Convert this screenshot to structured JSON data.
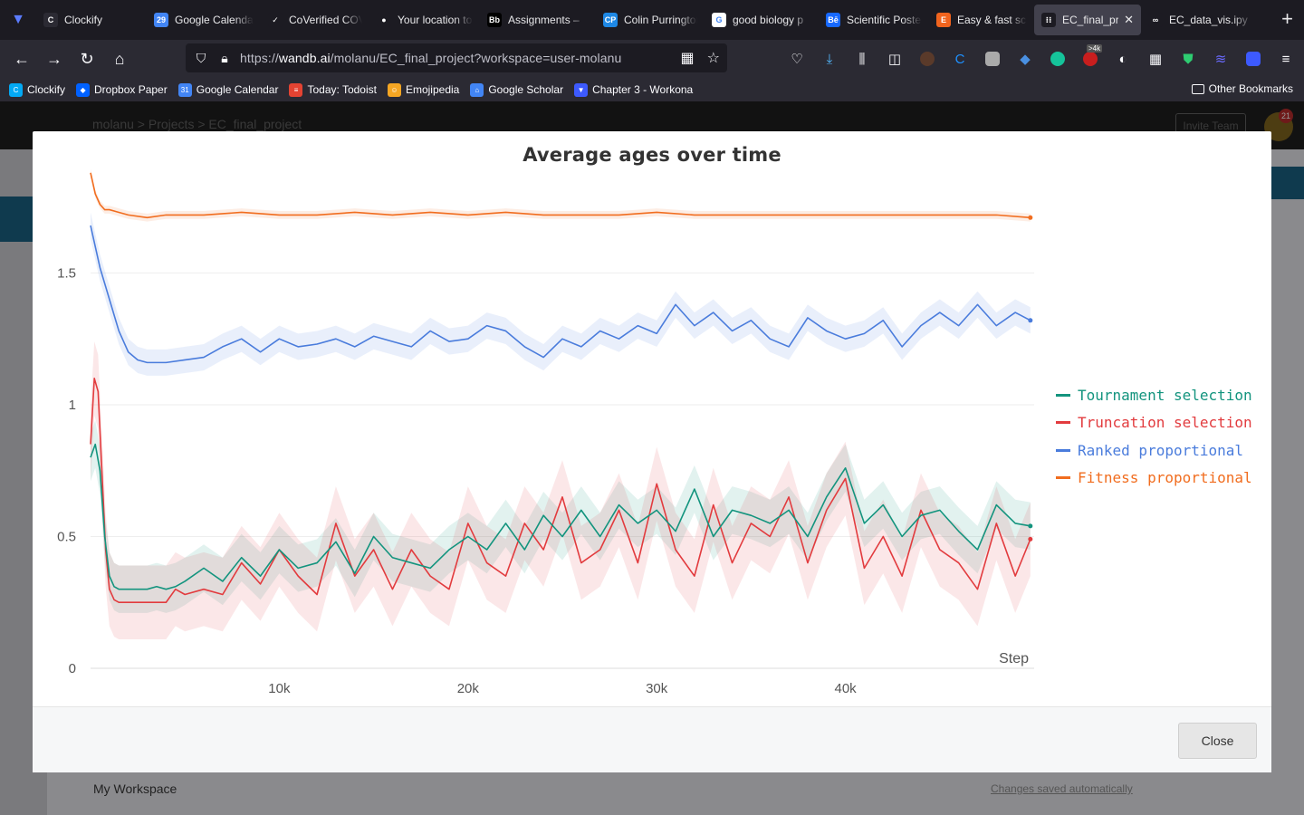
{
  "browser": {
    "tabs": [
      {
        "label": "Clockify",
        "fav_color": "#2b2a33",
        "fav_text": "C"
      },
      {
        "label": "Google Calendar",
        "fav_color": "#4285f4",
        "fav_text": "29"
      },
      {
        "label": "CoVerified COV",
        "fav_color": "#1c1b22",
        "fav_text": "✓"
      },
      {
        "label": "Your location to",
        "fav_color": "#1c1b22",
        "fav_text": "●"
      },
      {
        "label": "Assignments –",
        "fav_color": "#000000",
        "fav_text": "Bb"
      },
      {
        "label": "Colin Purrington",
        "fav_color": "#1e88e5",
        "fav_text": "CP"
      },
      {
        "label": "good biology p",
        "fav_color": "#ffffff",
        "fav_text": "G"
      },
      {
        "label": "Scientific Poste",
        "fav_color": "#1769ff",
        "fav_text": "Bē"
      },
      {
        "label": "Easy & fast scie",
        "fav_color": "#f1641e",
        "fav_text": "E"
      },
      {
        "label": "EC_final_pro",
        "fav_color": "#1c1b22",
        "fav_text": "⁝⁝"
      },
      {
        "label": "EC_data_vis.ipy",
        "fav_color": "#1c1b22",
        "fav_text": "∞"
      }
    ],
    "url_prefix": "https://",
    "url_host": "wandb.ai",
    "url_path": "/molanu/EC_final_project?workspace=user-molanu",
    "ext_badge": ">4k",
    "bookmarks": [
      {
        "label": "Clockify",
        "fav_color": "#03a9f4",
        "fav_text": "C"
      },
      {
        "label": "Dropbox Paper",
        "fav_color": "#0061ff",
        "fav_text": "◆"
      },
      {
        "label": "Google Calendar",
        "fav_color": "#4285f4",
        "fav_text": "31"
      },
      {
        "label": "Today: Todoist",
        "fav_color": "#e44332",
        "fav_text": "≡"
      },
      {
        "label": "Emojipedia",
        "fav_color": "#f5a623",
        "fav_text": "☺"
      },
      {
        "label": "Google Scholar",
        "fav_color": "#4285f4",
        "fav_text": "⌂"
      },
      {
        "label": "Chapter 3 - Workona",
        "fav_color": "#3d5afe",
        "fav_text": "▼"
      }
    ],
    "other_bookmarks": "Other Bookmarks"
  },
  "page": {
    "breadcrumb": "molanu  >  Projects  >  EC_final_project",
    "invite": "Invite Team",
    "notif_count": "21",
    "workspace": "My Workspace",
    "saved": "Changes saved automatically"
  },
  "modal": {
    "title": "Average ages over time",
    "close_label": "Close"
  },
  "colors": {
    "tournament": "#13947e",
    "truncation": "#e23b3e",
    "ranked": "#4a7cdc",
    "fitness": "#f16d1f"
  },
  "chart_data": {
    "type": "line",
    "title": "Average ages over time",
    "xlabel": "Step",
    "ylabel": "",
    "xlim": [
      0,
      50000
    ],
    "ylim": [
      0,
      1.9
    ],
    "x_ticks": [
      {
        "v": 10000,
        "label": "10k"
      },
      {
        "v": 20000,
        "label": "20k"
      },
      {
        "v": 30000,
        "label": "30k"
      },
      {
        "v": 40000,
        "label": "40k"
      }
    ],
    "y_ticks": [
      {
        "v": 0,
        "label": "0"
      },
      {
        "v": 0.5,
        "label": "0.5"
      },
      {
        "v": 1,
        "label": "1"
      },
      {
        "v": 1.5,
        "label": "1.5"
      }
    ],
    "grid": true,
    "legend_position": "right",
    "series": [
      {
        "name": "Tournament selection",
        "color": "#13947e",
        "x": [
          0,
          250,
          500,
          750,
          1000,
          1250,
          1500,
          2000,
          2500,
          3000,
          3500,
          4000,
          4500,
          5000,
          6000,
          7000,
          8000,
          9000,
          10000,
          11000,
          12000,
          13000,
          14000,
          15000,
          16000,
          17000,
          18000,
          19000,
          20000,
          21000,
          22000,
          23000,
          24000,
          25000,
          26000,
          27000,
          28000,
          29000,
          30000,
          31000,
          32000,
          33000,
          34000,
          35000,
          36000,
          37000,
          38000,
          39000,
          40000,
          41000,
          42000,
          43000,
          44000,
          45000,
          46000,
          47000,
          48000,
          49000,
          49800
        ],
        "y": [
          0.8,
          0.85,
          0.75,
          0.5,
          0.35,
          0.31,
          0.3,
          0.3,
          0.3,
          0.3,
          0.31,
          0.3,
          0.31,
          0.33,
          0.38,
          0.33,
          0.42,
          0.35,
          0.45,
          0.38,
          0.4,
          0.48,
          0.36,
          0.5,
          0.42,
          0.4,
          0.38,
          0.45,
          0.5,
          0.45,
          0.55,
          0.45,
          0.58,
          0.5,
          0.6,
          0.5,
          0.62,
          0.55,
          0.6,
          0.52,
          0.68,
          0.5,
          0.6,
          0.58,
          0.55,
          0.6,
          0.5,
          0.65,
          0.76,
          0.55,
          0.62,
          0.5,
          0.58,
          0.6,
          0.52,
          0.45,
          0.62,
          0.55,
          0.54
        ]
      },
      {
        "name": "Truncation selection",
        "color": "#e23b3e",
        "x": [
          0,
          200,
          400,
          600,
          800,
          1000,
          1250,
          1500,
          2000,
          2500,
          3000,
          3500,
          4000,
          4500,
          5000,
          6000,
          7000,
          8000,
          9000,
          10000,
          11000,
          12000,
          13000,
          14000,
          15000,
          16000,
          17000,
          18000,
          19000,
          20000,
          21000,
          22000,
          23000,
          24000,
          25000,
          26000,
          27000,
          28000,
          29000,
          30000,
          31000,
          32000,
          33000,
          34000,
          35000,
          36000,
          37000,
          38000,
          39000,
          40000,
          41000,
          42000,
          43000,
          44000,
          45000,
          46000,
          47000,
          48000,
          49000,
          49800
        ],
        "y": [
          0.85,
          1.1,
          1.05,
          0.75,
          0.45,
          0.3,
          0.26,
          0.25,
          0.25,
          0.25,
          0.25,
          0.25,
          0.25,
          0.3,
          0.28,
          0.3,
          0.28,
          0.4,
          0.32,
          0.45,
          0.35,
          0.28,
          0.55,
          0.35,
          0.45,
          0.3,
          0.45,
          0.35,
          0.3,
          0.55,
          0.4,
          0.35,
          0.55,
          0.45,
          0.65,
          0.4,
          0.45,
          0.6,
          0.4,
          0.7,
          0.45,
          0.35,
          0.62,
          0.4,
          0.55,
          0.5,
          0.65,
          0.4,
          0.6,
          0.72,
          0.38,
          0.5,
          0.35,
          0.6,
          0.45,
          0.4,
          0.3,
          0.55,
          0.35,
          0.49
        ]
      },
      {
        "name": "Ranked proportional",
        "color": "#4a7cdc",
        "x": [
          0,
          500,
          1000,
          1500,
          2000,
          2500,
          3000,
          3500,
          4000,
          5000,
          6000,
          7000,
          8000,
          9000,
          10000,
          11000,
          12000,
          13000,
          14000,
          15000,
          16000,
          17000,
          18000,
          19000,
          20000,
          21000,
          22000,
          23000,
          24000,
          25000,
          26000,
          27000,
          28000,
          29000,
          30000,
          31000,
          32000,
          33000,
          34000,
          35000,
          36000,
          37000,
          38000,
          39000,
          40000,
          41000,
          42000,
          43000,
          44000,
          45000,
          46000,
          47000,
          48000,
          49000,
          49800
        ],
        "y": [
          1.68,
          1.52,
          1.4,
          1.28,
          1.2,
          1.17,
          1.16,
          1.16,
          1.16,
          1.17,
          1.18,
          1.22,
          1.25,
          1.2,
          1.25,
          1.22,
          1.23,
          1.25,
          1.22,
          1.26,
          1.24,
          1.22,
          1.28,
          1.24,
          1.25,
          1.3,
          1.28,
          1.22,
          1.18,
          1.25,
          1.22,
          1.28,
          1.25,
          1.3,
          1.27,
          1.38,
          1.3,
          1.35,
          1.28,
          1.32,
          1.25,
          1.22,
          1.33,
          1.28,
          1.25,
          1.27,
          1.32,
          1.22,
          1.3,
          1.35,
          1.3,
          1.38,
          1.3,
          1.35,
          1.32
        ]
      },
      {
        "name": "Fitness proportional",
        "color": "#f16d1f",
        "x": [
          0,
          250,
          500,
          750,
          1000,
          1500,
          2000,
          3000,
          4000,
          5000,
          6000,
          8000,
          10000,
          12000,
          14000,
          16000,
          18000,
          20000,
          22000,
          24000,
          26000,
          28000,
          30000,
          32000,
          34000,
          36000,
          38000,
          40000,
          42000,
          44000,
          46000,
          48000,
          49800
        ],
        "y": [
          1.88,
          1.8,
          1.76,
          1.74,
          1.74,
          1.73,
          1.72,
          1.71,
          1.72,
          1.72,
          1.72,
          1.73,
          1.72,
          1.72,
          1.73,
          1.72,
          1.73,
          1.72,
          1.73,
          1.72,
          1.72,
          1.72,
          1.73,
          1.72,
          1.72,
          1.72,
          1.72,
          1.72,
          1.72,
          1.72,
          1.72,
          1.72,
          1.71
        ]
      }
    ]
  }
}
